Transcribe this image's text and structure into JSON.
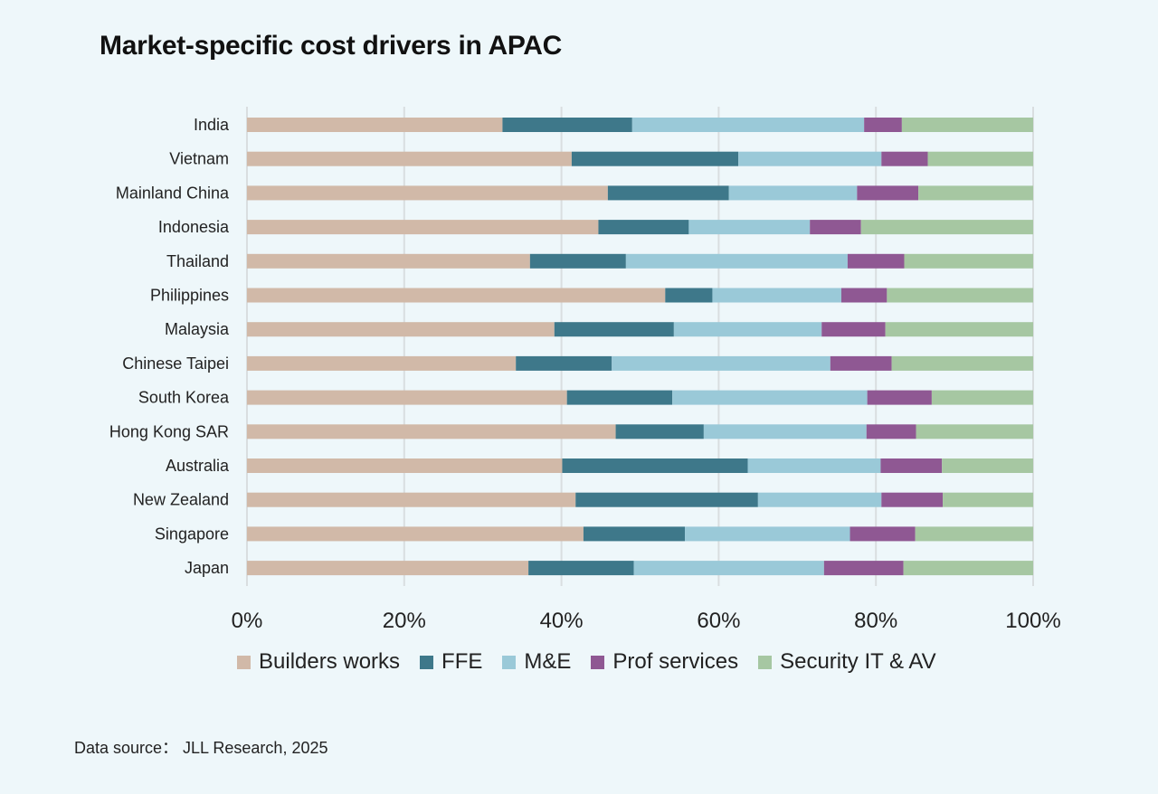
{
  "page": {
    "title": "Market-specific cost drivers in APAC",
    "source": "Data source：  JLL Research, 2025"
  },
  "chart_data": {
    "type": "bar",
    "orientation": "horizontal",
    "stacked": "100%",
    "title": "Market-specific cost drivers in APAC",
    "categories": [
      "India",
      "Vietnam",
      "Mainland China",
      "Indonesia",
      "Thailand",
      "Philippines",
      "Malaysia",
      "Chinese Taipei",
      "South Korea",
      "Hong Kong SAR",
      "Australia",
      "New Zealand",
      "Singapore",
      "Japan"
    ],
    "series": [
      {
        "name": "Builders works",
        "color": "#d1b9a8",
        "values": [
          32.5,
          41.3,
          45.9,
          44.7,
          36.0,
          53.2,
          39.1,
          34.2,
          40.7,
          46.9,
          40.1,
          41.8,
          42.8,
          35.8
        ]
      },
      {
        "name": "FFE",
        "color": "#3e788a",
        "values": [
          16.5,
          21.2,
          15.4,
          11.5,
          12.2,
          6.0,
          15.2,
          12.2,
          13.4,
          11.2,
          23.6,
          23.2,
          12.9,
          13.4
        ]
      },
      {
        "name": "M&E",
        "color": "#9ac9d8",
        "values": [
          29.5,
          18.2,
          16.3,
          15.4,
          28.2,
          16.4,
          18.8,
          27.8,
          24.8,
          20.7,
          16.9,
          15.7,
          21.0,
          24.2
        ]
      },
      {
        "name": "Prof services",
        "color": "#8f5893",
        "values": [
          4.8,
          5.9,
          7.8,
          6.5,
          7.2,
          5.8,
          8.1,
          7.8,
          8.2,
          6.3,
          7.8,
          7.8,
          8.3,
          10.1
        ]
      },
      {
        "name": "Security IT & AV",
        "color": "#a6c7a2",
        "values": [
          16.7,
          13.4,
          14.6,
          21.9,
          16.4,
          18.6,
          18.8,
          18.0,
          12.9,
          14.9,
          11.6,
          11.5,
          15.0,
          16.5
        ]
      }
    ],
    "xlim": [
      0,
      100
    ],
    "x_ticks": [
      "0%",
      "20%",
      "40%",
      "60%",
      "80%",
      "100%"
    ],
    "xlabel": "",
    "ylabel": "",
    "grid": "vertical",
    "legend": "bottom"
  }
}
